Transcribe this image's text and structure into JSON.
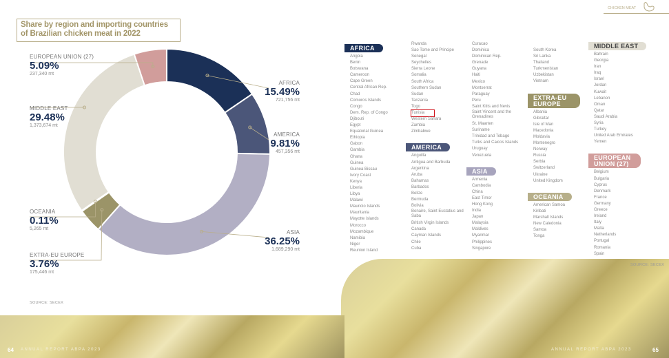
{
  "header": {
    "section": "CHICKEN MEAT"
  },
  "title": "Share by region and importing countries of Brazilian chicken meat in 2022",
  "chart_data": {
    "type": "pie",
    "subtype": "donut",
    "title": "Share by region and importing countries of Brazilian chicken meat in 2022",
    "slices": [
      {
        "name": "AFRICA",
        "pct": 15.49,
        "pct_label": "15.49%",
        "mt": "721,756 mt",
        "color": "#1b3057"
      },
      {
        "name": "AMERICA",
        "pct": 9.81,
        "pct_label": "9.81%",
        "mt": "457,356 mt",
        "color": "#4b5679"
      },
      {
        "name": "ASIA",
        "pct": 36.25,
        "pct_label": "36.25%",
        "mt": "1,689,290 mt",
        "color": "#b2afc4"
      },
      {
        "name": "EXTRA-EU EUROPE",
        "pct": 3.76,
        "pct_label": "3.76%",
        "mt": "175,446 mt",
        "color": "#9b9468"
      },
      {
        "name": "OCEANIA",
        "pct": 0.11,
        "pct_label": "0.11%",
        "mt": "5,265 mt",
        "color": "#cbc6ad"
      },
      {
        "name": "MIDDLE EAST",
        "pct": 29.48,
        "pct_label": "29.48%",
        "mt": "1,373,674 mt",
        "color": "#e1ded3"
      },
      {
        "name": "EUROPEAN UNION (27)",
        "pct": 5.09,
        "pct_label": "5.09%",
        "mt": "237,340 mt",
        "color": "#d19d9b"
      }
    ],
    "source": "SOURCE: SECEX"
  },
  "lists": {
    "source": "SOURCE: SECEX",
    "highlighted": "Tunisia",
    "columns": [
      {
        "blocks": [
          {
            "region": "AFRICA",
            "color": "#1b3057",
            "countries": [
              "Angola",
              "Benin",
              "Botswana",
              "Cameroon",
              "Cape Green",
              "Central African Rep.",
              "Chad",
              "Comoros Islands",
              "Congo",
              "Dem. Rep. of Congo",
              "Djibouti",
              "Egypt",
              "Equatorial Guinea",
              "Ethiopia",
              "Gabon",
              "Gambia",
              "Ghana",
              "Guinea",
              "Guinea Bissau",
              "Ivory Coast",
              "Kenya",
              "Liberia",
              "Libya",
              "Malawi",
              "Mauricio Islands",
              "Mauritania",
              "Mayotte islands",
              "Morocco",
              "Mozambique",
              "Namibia",
              "Niger",
              "Reunion Island"
            ]
          }
        ]
      },
      {
        "blocks": [
          {
            "countries": [
              "Rwanda",
              "Sao Tome and Principe",
              "Senegal",
              "Seychelles",
              "Sierra Leone",
              "Somalia",
              "South Africa",
              "Southern Sudan",
              "Sudan",
              "Tanzania",
              "Togo",
              "Tunisia",
              "Western Sahara",
              "Zambia",
              "Zimbabwe"
            ]
          },
          {
            "region": "AMERICA",
            "color": "#4b5679",
            "countries": [
              "Anguilla",
              "Antigua and Barbuda",
              "Argentina",
              "Aruba",
              "Bahamas",
              "Barbados",
              "Belize",
              "Bermuda",
              "Bolivia",
              "Bonaire, Saint Eustatius and Saba",
              "British Virgin Islands",
              "Canada",
              "Cayman Islands",
              "Chile",
              "Cuba"
            ]
          }
        ]
      },
      {
        "blocks": [
          {
            "countries": [
              "Curacao",
              "Dominica",
              "Dominican Rep.",
              "Grenade",
              "Guyana",
              "Haiti",
              "Mexico",
              "Montserrat",
              "Paraguay",
              "Peru",
              "Saint Kitts and Nevis",
              "Saint Vincent and the Grenadines",
              "St. Maarten",
              "Suriname",
              "Trinidad and Tobago",
              "Turks and Caicos Islands",
              "Uruguay",
              "Venezuela"
            ]
          },
          {
            "region": "ASIA",
            "color": "#a7a4bd",
            "countries": [
              "Armenia",
              "Cambodia",
              "China",
              "East Timor",
              "Hong Kong",
              "India",
              "Japan",
              "Malaysia",
              "Maldives",
              "Myanmar",
              "Philippines",
              "Singapore"
            ]
          }
        ]
      },
      {
        "blocks": [
          {
            "countries": [
              "South Korea",
              "Sri Lanka",
              "Thailand",
              "Turkmenistan",
              "Uzbekistan",
              "Vietnam"
            ]
          },
          {
            "region": "EXTRA-EU EUROPE",
            "color": "#9b9468",
            "countries": [
              "Albania",
              "Gibraltar",
              "Isle of Man",
              "Macedonia",
              "Moldavia",
              "Montenegro",
              "Norway",
              "Russia",
              "Serbia",
              "Switzerland",
              "Ukraine",
              "United Kingdom"
            ]
          },
          {
            "region": "OCEANIA",
            "color": "#b7af8a",
            "countries": [
              "American Samoa",
              "Kiribati",
              "Marshall Islands",
              "New Caledonia",
              "Samoa",
              "Tonga"
            ]
          }
        ]
      },
      {
        "blocks": [
          {
            "region": "MIDDLE EAST",
            "color": "#e1ded3",
            "dark": true,
            "countries": [
              "Bahrain",
              "Georgia",
              "Iran",
              "Iraq",
              "Israel",
              "Jordan",
              "Kuwait",
              "Lebanon",
              "Oman",
              "Qatar",
              "Saudi Arabia",
              "Syria",
              "Turkey",
              "United Arab Emirates",
              "Yemen"
            ]
          },
          {
            "region": "EUROPEAN UNION (27)",
            "color": "#d19d9b",
            "countries": [
              "Belgium",
              "Bulgaria",
              "Cyprus",
              "Denmark",
              "France",
              "Germany",
              "Greece",
              "Ireland",
              "Italy",
              "Malta",
              "Netherlands",
              "Portugal",
              "Romania",
              "Spain"
            ]
          }
        ]
      }
    ]
  },
  "footer": {
    "left_page": "64",
    "left_text": "ANNUAL REPORT ABPA 2023",
    "right_text": "ANNUAL REPORT ABPA 2023",
    "right_page": "65"
  }
}
